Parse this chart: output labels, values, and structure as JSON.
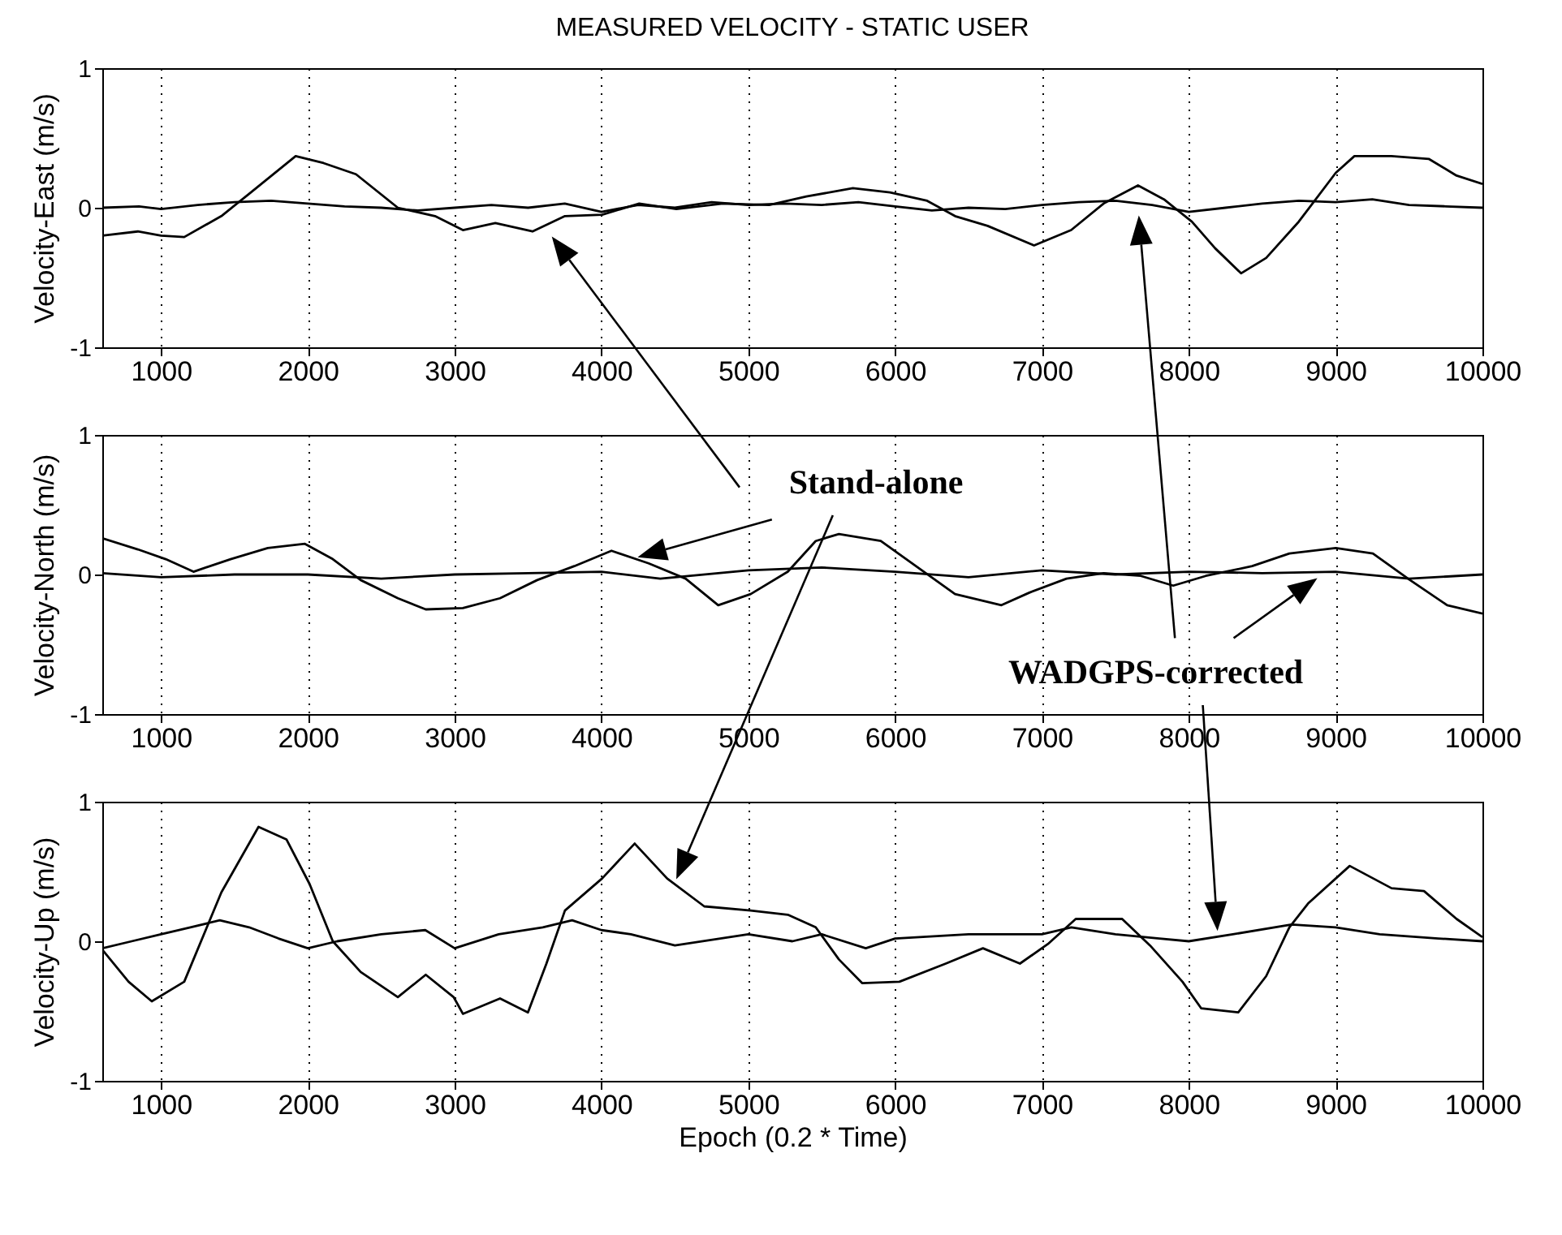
{
  "chart_data": [
    {
      "type": "line",
      "title": "MEASURED VELOCITY - STATIC USER",
      "ylabel": "Velocity-East (m/s)",
      "xlim": [
        600,
        10000
      ],
      "xticks": [
        1000,
        2000,
        3000,
        4000,
        5000,
        6000,
        7000,
        8000,
        9000,
        10000
      ],
      "ylim": [
        -1,
        1
      ],
      "yticks": [
        -1,
        0,
        1
      ],
      "grid": "x",
      "series": [
        {
          "color": "#000000",
          "x": [
            600,
            842,
            1000,
            1158,
            1411,
            1600,
            1917,
            2107,
            2328,
            2613,
            2866,
            3056,
            3277,
            3530,
            3751,
            4004,
            4257,
            4510,
            4826,
            5142,
            5395,
            5712,
            5965,
            6218,
            6408,
            6630,
            6946,
            7199,
            7420,
            7654,
            7831,
            8021,
            8179,
            8356,
            8527,
            8749,
            9001,
            9128,
            9380,
            9634,
            9824,
            10000
          ],
          "values": [
            -0.2,
            -0.17,
            -0.2,
            -0.21,
            -0.06,
            0.1,
            0.37,
            0.32,
            0.24,
            0.0,
            -0.06,
            -0.16,
            -0.11,
            -0.17,
            -0.06,
            -0.05,
            0.03,
            -0.01,
            0.03,
            0.02,
            0.08,
            0.14,
            0.11,
            0.05,
            -0.06,
            -0.13,
            -0.27,
            -0.16,
            0.03,
            0.16,
            0.06,
            -0.1,
            -0.29,
            -0.47,
            -0.36,
            -0.1,
            0.25,
            0.37,
            0.37,
            0.35,
            0.23,
            0.17
          ]
        },
        {
          "color": "#000000",
          "x": [
            600,
            850,
            1000,
            1250,
            1500,
            1750,
            2000,
            2250,
            2500,
            2750,
            3000,
            3250,
            3500,
            3750,
            4000,
            4250,
            4500,
            4750,
            5000,
            5250,
            5500,
            5750,
            6000,
            6250,
            6500,
            6750,
            7000,
            7250,
            7500,
            7750,
            8000,
            8250,
            8500,
            8750,
            9000,
            9250,
            9500,
            9750,
            10000
          ],
          "values": [
            0.0,
            0.01,
            -0.01,
            0.02,
            0.04,
            0.05,
            0.03,
            0.01,
            0.0,
            -0.02,
            0.0,
            0.02,
            0.0,
            0.03,
            -0.03,
            0.02,
            0.0,
            0.04,
            0.02,
            0.03,
            0.02,
            0.04,
            0.01,
            -0.02,
            0.0,
            -0.01,
            0.02,
            0.04,
            0.05,
            0.02,
            -0.03,
            0.0,
            0.03,
            0.05,
            0.04,
            0.06,
            0.02,
            0.01,
            0.0
          ]
        }
      ]
    },
    {
      "type": "line",
      "ylabel": "Velocity-North (m/s)",
      "xlim": [
        600,
        10000
      ],
      "xticks": [
        1000,
        2000,
        3000,
        4000,
        5000,
        6000,
        7000,
        8000,
        9000,
        10000
      ],
      "ylim": [
        -1,
        1
      ],
      "yticks": [
        -1,
        0,
        1
      ],
      "grid": "x",
      "annotations": [
        "Stand-alone",
        "WADGPS-corrected"
      ],
      "series": [
        {
          "color": "#000000",
          "x": [
            600,
            842,
            1032,
            1221,
            1474,
            1727,
            1980,
            2170,
            2360,
            2613,
            2803,
            3056,
            3309,
            3562,
            3815,
            4068,
            4321,
            4573,
            4795,
            5016,
            5269,
            5459,
            5617,
            5902,
            6155,
            6408,
            6724,
            6914,
            7167,
            7420,
            7673,
            7894,
            8116,
            8432,
            8685,
            9001,
            9254,
            9507,
            9760,
            10000
          ],
          "values": [
            0.26,
            0.18,
            0.11,
            0.02,
            0.11,
            0.19,
            0.22,
            0.11,
            -0.04,
            -0.17,
            -0.25,
            -0.24,
            -0.17,
            -0.04,
            0.06,
            0.17,
            0.08,
            -0.03,
            -0.22,
            -0.14,
            0.02,
            0.24,
            0.29,
            0.24,
            0.05,
            -0.14,
            -0.22,
            -0.13,
            -0.03,
            0.01,
            -0.01,
            -0.08,
            -0.01,
            0.06,
            0.15,
            0.19,
            0.15,
            -0.04,
            -0.22,
            -0.28
          ]
        },
        {
          "color": "#000000",
          "x": [
            600,
            1000,
            1500,
            2000,
            2500,
            3000,
            3500,
            4000,
            4400,
            5000,
            5500,
            6000,
            6500,
            7000,
            7500,
            8000,
            8500,
            9000,
            9500,
            10000
          ],
          "values": [
            0.01,
            -0.02,
            0.0,
            0.0,
            -0.03,
            0.0,
            0.01,
            0.02,
            -0.03,
            0.03,
            0.05,
            0.02,
            -0.02,
            0.03,
            0.0,
            0.02,
            0.01,
            0.02,
            -0.03,
            0.0
          ]
        }
      ]
    },
    {
      "type": "line",
      "ylabel": "Velocity-Up (m/s)",
      "xlabel": "Epoch (0.2 * Time)",
      "xlim": [
        600,
        10000
      ],
      "xticks": [
        1000,
        2000,
        3000,
        4000,
        5000,
        6000,
        7000,
        8000,
        9000,
        10000
      ],
      "ylim": [
        -1,
        1
      ],
      "yticks": [
        -1,
        0,
        1
      ],
      "grid": "x",
      "series": [
        {
          "color": "#000000",
          "x": [
            600,
            779,
            937,
            1158,
            1411,
            1664,
            1854,
            2012,
            2170,
            2360,
            2613,
            2803,
            2993,
            3056,
            3309,
            3499,
            3625,
            3751,
            4004,
            4226,
            4447,
            4700,
            5016,
            5269,
            5459,
            5617,
            5775,
            6029,
            6345,
            6598,
            6850,
            7040,
            7230,
            7546,
            7736,
            7957,
            8084,
            8337,
            8527,
            8685,
            8812,
            9096,
            9381,
            9602,
            9824,
            10000
          ],
          "values": [
            -0.06,
            -0.29,
            -0.43,
            -0.29,
            0.35,
            0.82,
            0.73,
            0.41,
            0.0,
            -0.22,
            -0.4,
            -0.24,
            -0.4,
            -0.52,
            -0.41,
            -0.51,
            -0.16,
            0.22,
            0.45,
            0.7,
            0.45,
            0.25,
            0.22,
            0.19,
            0.1,
            -0.13,
            -0.3,
            -0.29,
            -0.16,
            -0.05,
            -0.16,
            -0.02,
            0.16,
            0.16,
            -0.03,
            -0.29,
            -0.48,
            -0.51,
            -0.25,
            0.1,
            0.27,
            0.54,
            0.38,
            0.36,
            0.16,
            0.03
          ]
        },
        {
          "color": "#000000",
          "x": [
            600,
            800,
            1000,
            1200,
            1400,
            1600,
            1800,
            2000,
            2200,
            2500,
            2800,
            3000,
            3300,
            3600,
            3800,
            4000,
            4200,
            4500,
            5000,
            5300,
            5500,
            5800,
            6000,
            6500,
            7000,
            7200,
            7500,
            7800,
            8000,
            8300,
            8700,
            9000,
            9300,
            9700,
            10000
          ],
          "values": [
            -0.05,
            0.0,
            0.05,
            0.1,
            0.15,
            0.1,
            0.02,
            -0.05,
            0.0,
            0.05,
            0.08,
            -0.05,
            0.05,
            0.1,
            0.15,
            0.08,
            0.05,
            -0.03,
            0.05,
            0.0,
            0.05,
            -0.05,
            0.02,
            0.05,
            0.05,
            0.1,
            0.05,
            0.02,
            0.0,
            0.05,
            0.12,
            0.1,
            0.05,
            0.02,
            0.0
          ]
        }
      ]
    }
  ]
}
